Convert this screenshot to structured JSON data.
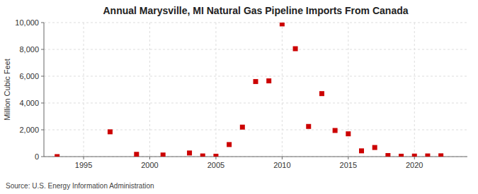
{
  "chart_data": {
    "type": "scatter",
    "title": "Annual Marysville, MI Natural Gas Pipeline Imports From Canada",
    "y_label": "Million Cubic Feet",
    "annotations": [
      "Source: U.S. Energy Information Administration"
    ],
    "x": [
      1993,
      1997,
      1999,
      2001,
      2003,
      2004,
      2005,
      2006,
      2007,
      2008,
      2009,
      2010,
      2011,
      2012,
      2013,
      2014,
      2015,
      2016,
      2017,
      2018,
      2019,
      2020,
      2021,
      2022
    ],
    "values": [
      0,
      1850,
      170,
      120,
      270,
      50,
      30,
      900,
      2200,
      5600,
      5650,
      9900,
      8050,
      2250,
      4700,
      1950,
      1700,
      430,
      680,
      80,
      30,
      40,
      50,
      60
    ],
    "color": "#cc0000",
    "marker": "square",
    "xlim": [
      1992,
      2024
    ],
    "ylim": [
      0,
      10000
    ],
    "xticks": [
      1995,
      2000,
      2005,
      2010,
      2015,
      2020
    ],
    "yticks": [
      0,
      {
        "value": 2000,
        "label": "2,000"
      },
      {
        "value": 4000,
        "label": "4,000"
      },
      {
        "value": 6000,
        "label": "6,000"
      },
      {
        "value": 8000,
        "label": "8,000"
      },
      {
        "value": 10000,
        "label": "10,000"
      }
    ],
    "grid": true
  }
}
